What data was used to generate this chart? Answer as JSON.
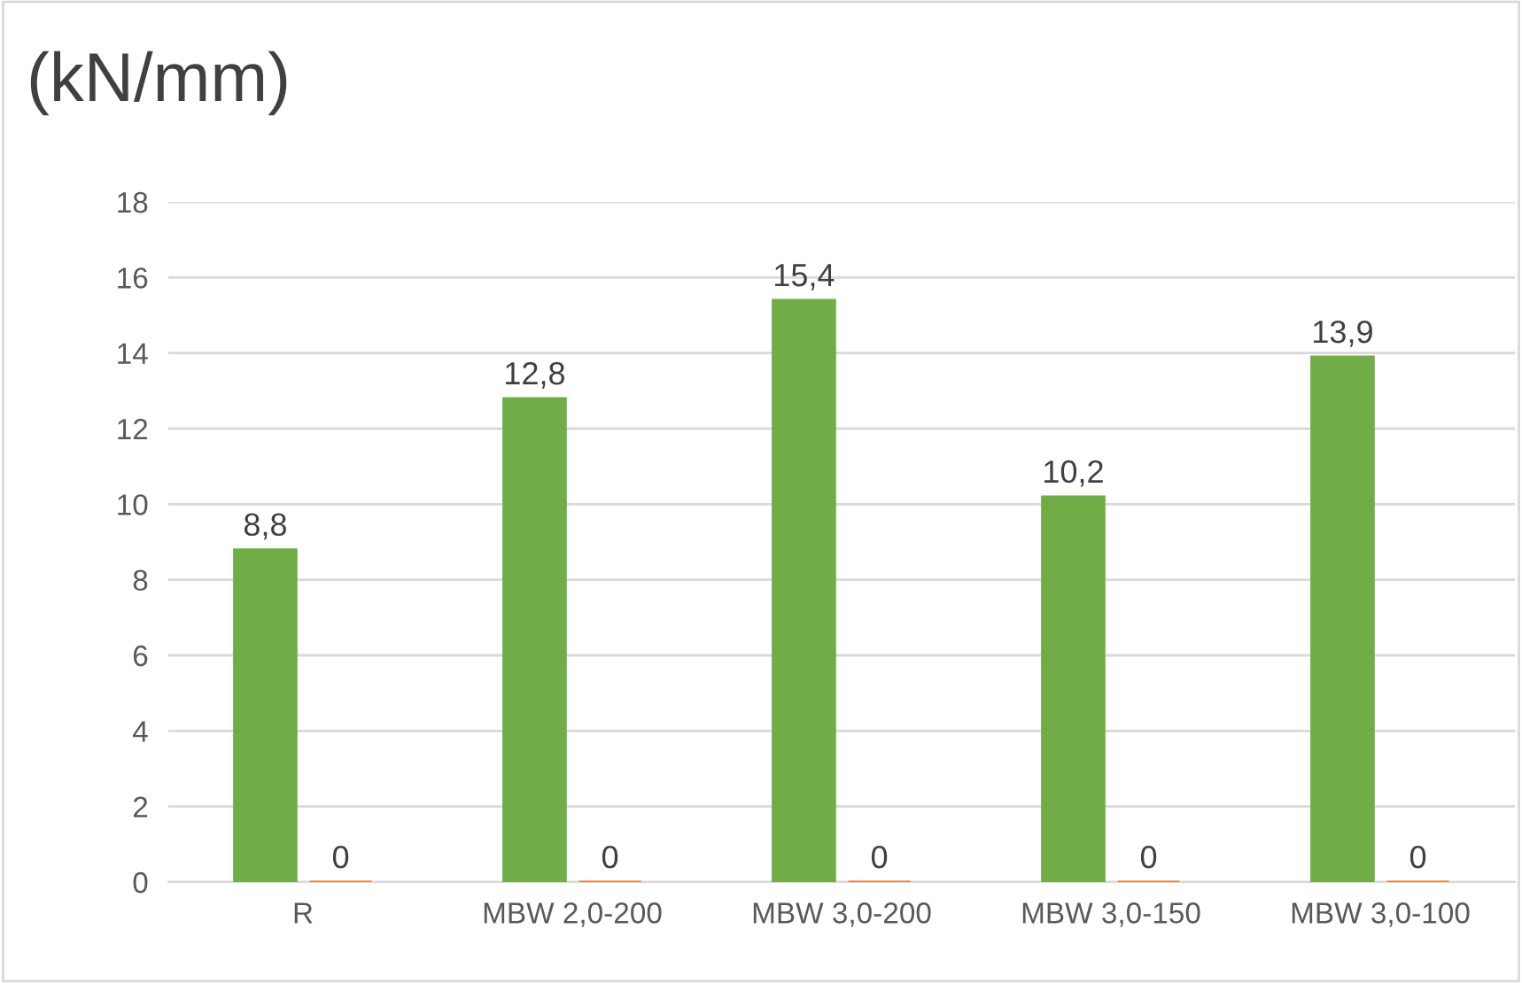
{
  "chart_data": {
    "type": "bar",
    "title": "(kN/mm)",
    "categories": [
      "R",
      "MBW 2,0-200",
      "MBW 3,0-200",
      "MBW 3,0-150",
      "MBW 3,0-100"
    ],
    "series": [
      {
        "color": "#70ad47",
        "values": [
          8.8,
          12.8,
          15.4,
          10.2,
          13.9
        ],
        "value_labels": [
          "8,8",
          "12,8",
          "15,4",
          "10,2",
          "13,9"
        ]
      },
      {
        "color": "#ed7d31",
        "values": [
          0,
          0,
          0,
          0,
          0
        ],
        "value_labels": [
          "0",
          "0",
          "0",
          "0",
          "0"
        ]
      }
    ],
    "ylim": [
      0,
      18
    ],
    "yticks": [
      0,
      2,
      4,
      6,
      8,
      10,
      12,
      14,
      16,
      18
    ],
    "grid": "y",
    "legend": false
  }
}
